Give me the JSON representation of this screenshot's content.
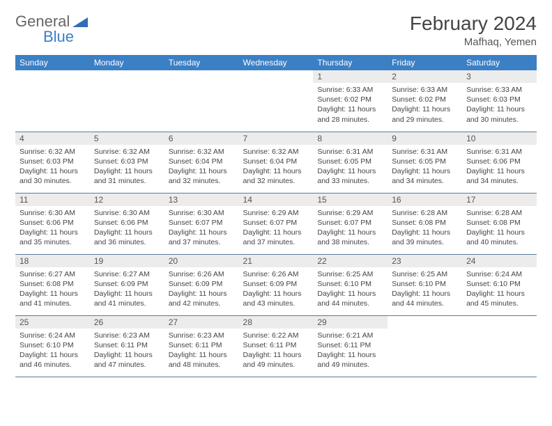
{
  "brand": {
    "part1": "General",
    "part2": "Blue"
  },
  "title": "February 2024",
  "location": "Mafhaq, Yemen",
  "colors": {
    "header_bg": "#3b7fc4",
    "header_text": "#ffffff",
    "daynum_bg": "#ececec",
    "border": "#5a7a9a",
    "body_text": "#444444"
  },
  "weekdays": [
    "Sunday",
    "Monday",
    "Tuesday",
    "Wednesday",
    "Thursday",
    "Friday",
    "Saturday"
  ],
  "leading_blanks": 4,
  "days": [
    {
      "n": "1",
      "sunrise": "6:33 AM",
      "sunset": "6:02 PM",
      "daylight": "11 hours and 28 minutes."
    },
    {
      "n": "2",
      "sunrise": "6:33 AM",
      "sunset": "6:02 PM",
      "daylight": "11 hours and 29 minutes."
    },
    {
      "n": "3",
      "sunrise": "6:33 AM",
      "sunset": "6:03 PM",
      "daylight": "11 hours and 30 minutes."
    },
    {
      "n": "4",
      "sunrise": "6:32 AM",
      "sunset": "6:03 PM",
      "daylight": "11 hours and 30 minutes."
    },
    {
      "n": "5",
      "sunrise": "6:32 AM",
      "sunset": "6:03 PM",
      "daylight": "11 hours and 31 minutes."
    },
    {
      "n": "6",
      "sunrise": "6:32 AM",
      "sunset": "6:04 PM",
      "daylight": "11 hours and 32 minutes."
    },
    {
      "n": "7",
      "sunrise": "6:32 AM",
      "sunset": "6:04 PM",
      "daylight": "11 hours and 32 minutes."
    },
    {
      "n": "8",
      "sunrise": "6:31 AM",
      "sunset": "6:05 PM",
      "daylight": "11 hours and 33 minutes."
    },
    {
      "n": "9",
      "sunrise": "6:31 AM",
      "sunset": "6:05 PM",
      "daylight": "11 hours and 34 minutes."
    },
    {
      "n": "10",
      "sunrise": "6:31 AM",
      "sunset": "6:06 PM",
      "daylight": "11 hours and 34 minutes."
    },
    {
      "n": "11",
      "sunrise": "6:30 AM",
      "sunset": "6:06 PM",
      "daylight": "11 hours and 35 minutes."
    },
    {
      "n": "12",
      "sunrise": "6:30 AM",
      "sunset": "6:06 PM",
      "daylight": "11 hours and 36 minutes."
    },
    {
      "n": "13",
      "sunrise": "6:30 AM",
      "sunset": "6:07 PM",
      "daylight": "11 hours and 37 minutes."
    },
    {
      "n": "14",
      "sunrise": "6:29 AM",
      "sunset": "6:07 PM",
      "daylight": "11 hours and 37 minutes."
    },
    {
      "n": "15",
      "sunrise": "6:29 AM",
      "sunset": "6:07 PM",
      "daylight": "11 hours and 38 minutes."
    },
    {
      "n": "16",
      "sunrise": "6:28 AM",
      "sunset": "6:08 PM",
      "daylight": "11 hours and 39 minutes."
    },
    {
      "n": "17",
      "sunrise": "6:28 AM",
      "sunset": "6:08 PM",
      "daylight": "11 hours and 40 minutes."
    },
    {
      "n": "18",
      "sunrise": "6:27 AM",
      "sunset": "6:08 PM",
      "daylight": "11 hours and 41 minutes."
    },
    {
      "n": "19",
      "sunrise": "6:27 AM",
      "sunset": "6:09 PM",
      "daylight": "11 hours and 41 minutes."
    },
    {
      "n": "20",
      "sunrise": "6:26 AM",
      "sunset": "6:09 PM",
      "daylight": "11 hours and 42 minutes."
    },
    {
      "n": "21",
      "sunrise": "6:26 AM",
      "sunset": "6:09 PM",
      "daylight": "11 hours and 43 minutes."
    },
    {
      "n": "22",
      "sunrise": "6:25 AM",
      "sunset": "6:10 PM",
      "daylight": "11 hours and 44 minutes."
    },
    {
      "n": "23",
      "sunrise": "6:25 AM",
      "sunset": "6:10 PM",
      "daylight": "11 hours and 44 minutes."
    },
    {
      "n": "24",
      "sunrise": "6:24 AM",
      "sunset": "6:10 PM",
      "daylight": "11 hours and 45 minutes."
    },
    {
      "n": "25",
      "sunrise": "6:24 AM",
      "sunset": "6:10 PM",
      "daylight": "11 hours and 46 minutes."
    },
    {
      "n": "26",
      "sunrise": "6:23 AM",
      "sunset": "6:11 PM",
      "daylight": "11 hours and 47 minutes."
    },
    {
      "n": "27",
      "sunrise": "6:23 AM",
      "sunset": "6:11 PM",
      "daylight": "11 hours and 48 minutes."
    },
    {
      "n": "28",
      "sunrise": "6:22 AM",
      "sunset": "6:11 PM",
      "daylight": "11 hours and 49 minutes."
    },
    {
      "n": "29",
      "sunrise": "6:21 AM",
      "sunset": "6:11 PM",
      "daylight": "11 hours and 49 minutes."
    }
  ],
  "labels": {
    "sunrise": "Sunrise: ",
    "sunset": "Sunset: ",
    "daylight": "Daylight: "
  }
}
